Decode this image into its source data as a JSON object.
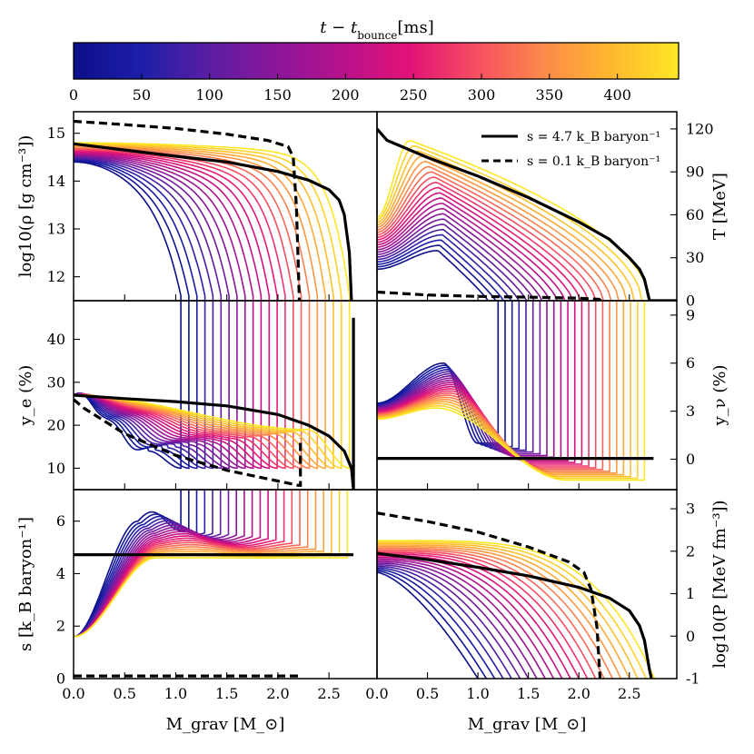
{
  "colorbar": {
    "title": "t − t_bounce [ms]",
    "title_main": "t − t",
    "title_sub": "bounce",
    "title_unit": "[ms]",
    "range": [
      0,
      445
    ],
    "ticks": [
      0,
      50,
      100,
      150,
      200,
      250,
      300,
      350,
      400
    ],
    "colors": [
      "#0b0f8a",
      "#1c1fa8",
      "#5a1ea3",
      "#8a169a",
      "#b8128c",
      "#e21277",
      "#f64f61",
      "#fc8a4a",
      "#feb82f",
      "#fde725"
    ]
  },
  "legend": {
    "entries": [
      {
        "label": "s = 4.7 k_B baryon⁻¹",
        "style": "solid"
      },
      {
        "label": "s = 0.1 k_B baryon⁻¹",
        "style": "dashed"
      }
    ]
  },
  "chart_data": [
    {
      "type": "line",
      "panel": "rho",
      "ylabel": "log10(ρ [g cm⁻³])",
      "ylabel_side": "left",
      "xlim": [
        0.0,
        2.97
      ],
      "ylim": [
        11.5,
        15.45
      ],
      "yticks": [
        12,
        13,
        14,
        15
      ],
      "x_tick_labels_shown": false,
      "series": [
        {
          "name": "s = 4.7 k_B baryon⁻¹",
          "style": "solid",
          "x": [
            0.0,
            0.5,
            1.0,
            1.5,
            2.0,
            2.3,
            2.5,
            2.6,
            2.65,
            2.7,
            2.72
          ],
          "y": [
            14.78,
            14.65,
            14.52,
            14.4,
            14.2,
            14.02,
            13.82,
            13.6,
            13.3,
            12.5,
            11.5
          ]
        },
        {
          "name": "s = 0.1 k_B baryon⁻¹",
          "style": "dashed",
          "x": [
            0.0,
            0.5,
            1.0,
            1.5,
            1.9,
            2.1,
            2.15,
            2.18,
            2.2,
            2.21
          ],
          "y": [
            15.25,
            15.18,
            15.1,
            14.98,
            14.85,
            14.72,
            14.5,
            13.5,
            12.2,
            11.5
          ]
        }
      ],
      "profiles": {
        "time_range_ms": [
          0,
          445
        ],
        "count": 22,
        "x_end": [
          1.05,
          2.7
        ],
        "y_inner": [
          14.4,
          14.8
        ],
        "y_floor": 11.5
      }
    },
    {
      "type": "line",
      "panel": "T",
      "ylabel": "T [MeV]",
      "ylabel_side": "right",
      "xlim": [
        0.0,
        2.97
      ],
      "ylim": [
        0,
        132
      ],
      "yticks": [
        0,
        30,
        60,
        90,
        120
      ],
      "x_tick_labels_shown": false,
      "series": [
        {
          "name": "s = 4.7 k_B baryon⁻¹",
          "style": "solid",
          "x": [
            0.0,
            0.1,
            0.5,
            1.0,
            1.5,
            2.0,
            2.3,
            2.5,
            2.6,
            2.65,
            2.7,
            2.97
          ],
          "y": [
            120,
            112,
            100,
            87,
            72,
            55,
            43,
            30,
            22,
            15,
            0,
            0
          ]
        },
        {
          "name": "s = 0.1 k_B baryon⁻¹",
          "style": "dashed",
          "x": [
            0.0,
            0.5,
            1.0,
            1.5,
            2.0,
            2.2,
            2.22
          ],
          "y": [
            6,
            4,
            3,
            2.5,
            1.8,
            1.0,
            0
          ]
        }
      ],
      "profiles": {
        "time_range_ms": [
          0,
          445
        ],
        "count": 22,
        "x_end": [
          1.1,
          2.7
        ],
        "y_peak": [
          35,
          112
        ],
        "y_inner": [
          22,
          58
        ]
      }
    },
    {
      "type": "line",
      "panel": "ye",
      "ylabel": "y_e (%)",
      "ylabel_side": "left",
      "xlim": [
        0.0,
        2.97
      ],
      "ylim": [
        5,
        49
      ],
      "yticks": [
        10,
        20,
        30,
        40
      ],
      "x_tick_labels_shown": false,
      "series": [
        {
          "name": "s = 4.7 k_B baryon⁻¹",
          "style": "solid",
          "x": [
            0.0,
            0.5,
            1.0,
            1.5,
            2.0,
            2.3,
            2.5,
            2.65,
            2.72,
            2.74,
            2.74
          ],
          "y": [
            27,
            26.2,
            25.5,
            24.5,
            22.5,
            20,
            17.5,
            14,
            10,
            5,
            45
          ]
        },
        {
          "name": "s = 0.1 k_B baryon⁻¹",
          "style": "dashed",
          "x": [
            0.0,
            0.1,
            0.5,
            1.0,
            1.5,
            2.0,
            2.2,
            2.22,
            2.22
          ],
          "y": [
            26,
            24,
            18,
            13,
            9.5,
            7,
            6,
            6,
            17
          ]
        }
      ],
      "profiles": {
        "time_range_ms": [
          0,
          445
        ],
        "count": 22,
        "x_end": [
          1.05,
          2.7
        ],
        "y_inner": 27,
        "y_dip": [
          14,
          19
        ]
      }
    },
    {
      "type": "line",
      "panel": "ynu",
      "ylabel": "y_ν (%)",
      "ylabel_side": "right",
      "xlim": [
        0.0,
        2.97
      ],
      "ylim": [
        -1.9,
        9.9
      ],
      "yticks": [
        0,
        3,
        6,
        9
      ],
      "x_tick_labels_shown": false,
      "series": [
        {
          "name": "s = 4.7 k_B baryon⁻¹",
          "style": "solid",
          "x": [
            0.0,
            2.74
          ],
          "y": [
            0.05,
            0.05
          ]
        }
      ],
      "profiles": {
        "time_range_ms": [
          0,
          445
        ],
        "count": 22,
        "x_end": [
          1.2,
          2.65
        ],
        "y_peak": [
          6.0,
          3.2
        ],
        "y_inner": [
          3.5,
          2.5
        ]
      }
    },
    {
      "type": "line",
      "panel": "s",
      "ylabel": "s [k_B baryon⁻¹]",
      "ylabel_side": "left",
      "xlabel": "M_grav [M_⊙]",
      "xlim": [
        0.0,
        2.97
      ],
      "xticks": [
        0.0,
        0.5,
        1.0,
        1.5,
        2.0,
        2.5
      ],
      "ylim": [
        0,
        7.2
      ],
      "yticks": [
        0,
        2,
        4,
        6
      ],
      "x_tick_labels_shown": true,
      "series": [
        {
          "name": "s = 4.7 k_B baryon⁻¹",
          "style": "solid",
          "x": [
            0.0,
            2.74
          ],
          "y": [
            4.72,
            4.72
          ]
        },
        {
          "name": "s = 0.1 k_B baryon⁻¹",
          "style": "dashed",
          "x": [
            0.0,
            2.22
          ],
          "y": [
            0.1,
            0.1
          ]
        }
      ],
      "profiles": {
        "time_range_ms": [
          0,
          445
        ],
        "count": 22,
        "x_end": [
          1.05,
          2.68
        ],
        "y_inner": 1.6,
        "y_plateau": [
          6.0,
          4.6
        ]
      }
    },
    {
      "type": "line",
      "panel": "P",
      "ylabel": "log10(P [MeV fm⁻³])",
      "ylabel_side": "right",
      "xlabel": "M_grav [M_⊙]",
      "xlim": [
        0.0,
        2.97
      ],
      "xticks": [
        0.0,
        0.5,
        1.0,
        1.5,
        2.0,
        2.5
      ],
      "ylim": [
        -1.0,
        3.45
      ],
      "yticks": [
        -1,
        0,
        1,
        2,
        3
      ],
      "x_tick_labels_shown": true,
      "series": [
        {
          "name": "s = 4.7 k_B baryon⁻¹",
          "style": "solid",
          "x": [
            0.0,
            0.5,
            1.0,
            1.5,
            2.0,
            2.3,
            2.5,
            2.6,
            2.65,
            2.7,
            2.72
          ],
          "y": [
            1.95,
            1.8,
            1.62,
            1.42,
            1.15,
            0.9,
            0.6,
            0.25,
            -0.1,
            -0.8,
            -1.0
          ]
        },
        {
          "name": "s = 0.1 k_B baryon⁻¹",
          "style": "dashed",
          "x": [
            0.0,
            0.5,
            1.0,
            1.5,
            1.9,
            2.05,
            2.12,
            2.18,
            2.2,
            2.21
          ],
          "y": [
            2.9,
            2.7,
            2.45,
            2.1,
            1.75,
            1.5,
            1.1,
            0.2,
            -0.6,
            -1.0
          ]
        }
      ],
      "profiles": {
        "time_range_ms": [
          0,
          445
        ],
        "count": 22,
        "x_end": [
          1.0,
          2.75
        ],
        "y_inner": [
          1.5,
          2.25
        ]
      }
    }
  ]
}
